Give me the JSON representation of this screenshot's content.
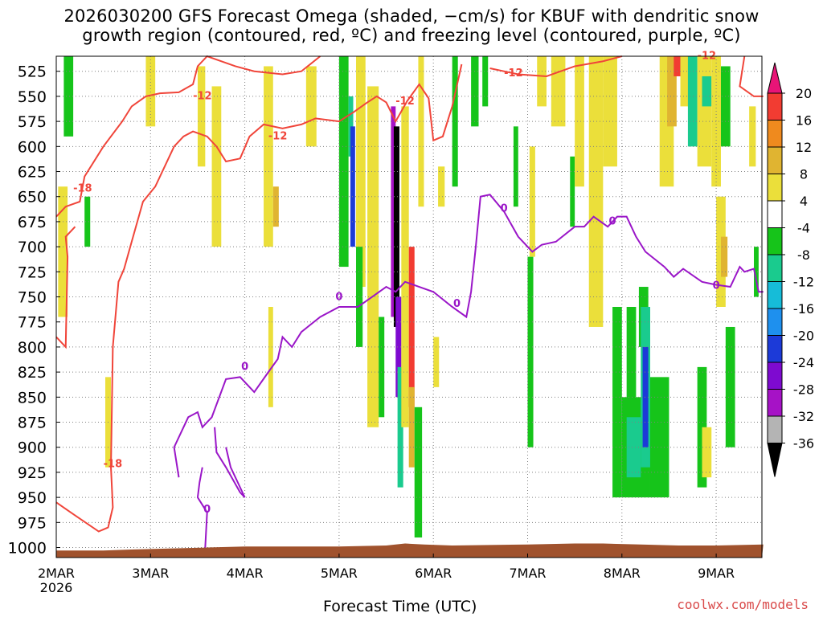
{
  "title_line1": "2026030200 GFS Forecast Omega (shaded, −cm/s) for KBUF with dendritic snow",
  "title_line2": "growth region (contoured, red, ºC) and freezing level (contoured, purple, ºC)",
  "xlabel": "Forecast Time (UTC)",
  "credit": "coolwx.com/models",
  "colors": {
    "temp_contour": "#f0453a",
    "freezing_contour": "#9a16c8",
    "terrain": "#a0522d",
    "grid": "#808080"
  },
  "chart_data": {
    "type": "heatmap",
    "title": "2026030200 GFS Forecast Omega (shaded, −cm/s) for KBUF with dendritic snow growth region (contoured, red, ºC) and freezing level (contoured, purple, ºC)",
    "xlabel": "Forecast Time (UTC)",
    "ylabel": "",
    "x_ticks": [
      "2MAR",
      "3MAR",
      "4MAR",
      "5MAR",
      "6MAR",
      "7MAR",
      "8MAR",
      "9MAR"
    ],
    "x_year": "2026",
    "xlim_days": [
      0,
      7.5
    ],
    "y_ticks": [
      525,
      550,
      575,
      600,
      625,
      650,
      675,
      700,
      725,
      750,
      775,
      800,
      825,
      850,
      875,
      900,
      925,
      950,
      975,
      1000
    ],
    "ylim_hPa": [
      510,
      1010
    ],
    "colorbar": {
      "labels": [
        "20",
        "16",
        "12",
        "8",
        "4",
        "-4",
        "-8",
        "-12",
        "-16",
        "-20",
        "-24",
        "-28",
        "-32",
        "-36"
      ],
      "colors": [
        "#e81477",
        "#f23c32",
        "#ef8a1e",
        "#e0b431",
        "#ebdf3a",
        "#ffffff",
        "#16c41a",
        "#1acb8e",
        "#16bcd8",
        "#1e90ee",
        "#1c3ad8",
        "#7e0ad0",
        "#a612c6",
        "#b4b4b4",
        "#000000"
      ]
    },
    "contour_labels": {
      "temp": [
        "-18",
        "-12",
        "-12",
        "-18",
        "-12",
        "-12",
        "-12"
      ],
      "freezing": [
        "0",
        "0",
        "0",
        "0",
        "0",
        "0",
        "0"
      ]
    },
    "shaded_regions": [
      {
        "t0": 0.02,
        "t1": 0.12,
        "p0": 640,
        "p1": 770,
        "val": 6
      },
      {
        "t0": 0.08,
        "t1": 0.18,
        "p0": 510,
        "p1": 590,
        "val": -6
      },
      {
        "t0": 0.3,
        "t1": 0.36,
        "p0": 650,
        "p1": 700,
        "val": -6
      },
      {
        "t0": 0.52,
        "t1": 0.58,
        "p0": 830,
        "p1": 920,
        "val": 6
      },
      {
        "t0": 0.95,
        "t1": 1.05,
        "p0": 510,
        "p1": 580,
        "val": 6
      },
      {
        "t0": 1.5,
        "t1": 1.58,
        "p0": 520,
        "p1": 620,
        "val": 6
      },
      {
        "t0": 1.65,
        "t1": 1.75,
        "p0": 540,
        "p1": 700,
        "val": 6
      },
      {
        "t0": 2.2,
        "t1": 2.3,
        "p0": 520,
        "p1": 700,
        "val": 6
      },
      {
        "t0": 2.25,
        "t1": 2.3,
        "p0": 760,
        "p1": 860,
        "val": 6
      },
      {
        "t0": 2.3,
        "t1": 2.36,
        "p0": 640,
        "p1": 680,
        "val": 10
      },
      {
        "t0": 2.65,
        "t1": 2.76,
        "p0": 520,
        "p1": 600,
        "val": 6
      },
      {
        "t0": 3.0,
        "t1": 3.1,
        "p0": 510,
        "p1": 720,
        "val": -6
      },
      {
        "t0": 3.1,
        "t1": 3.15,
        "p0": 550,
        "p1": 610,
        "val": -10
      },
      {
        "t0": 3.12,
        "t1": 3.17,
        "p0": 580,
        "p1": 700,
        "val": -22
      },
      {
        "t0": 3.18,
        "t1": 3.28,
        "p0": 510,
        "p1": 740,
        "val": 6
      },
      {
        "t0": 3.18,
        "t1": 3.25,
        "p0": 700,
        "p1": 800,
        "val": -6
      },
      {
        "t0": 3.3,
        "t1": 3.42,
        "p0": 540,
        "p1": 880,
        "val": 6
      },
      {
        "t0": 3.42,
        "t1": 3.48,
        "p0": 770,
        "p1": 870,
        "val": -6
      },
      {
        "t0": 3.55,
        "t1": 3.6,
        "p0": 560,
        "p1": 770,
        "val": -30
      },
      {
        "t0": 3.58,
        "t1": 3.64,
        "p0": 580,
        "p1": 780,
        "val": -38
      },
      {
        "t0": 3.6,
        "t1": 3.66,
        "p0": 750,
        "p1": 850,
        "val": -26
      },
      {
        "t0": 3.62,
        "t1": 3.68,
        "p0": 820,
        "p1": 940,
        "val": -10
      },
      {
        "t0": 3.66,
        "t1": 3.74,
        "p0": 560,
        "p1": 880,
        "val": 6
      },
      {
        "t0": 3.74,
        "t1": 3.8,
        "p0": 700,
        "p1": 860,
        "val": 18
      },
      {
        "t0": 3.74,
        "t1": 3.8,
        "p0": 840,
        "p1": 920,
        "val": 10
      },
      {
        "t0": 3.8,
        "t1": 3.88,
        "p0": 860,
        "p1": 990,
        "val": -6
      },
      {
        "t0": 3.84,
        "t1": 3.9,
        "p0": 510,
        "p1": 660,
        "val": 6
      },
      {
        "t0": 4.0,
        "t1": 4.06,
        "p0": 790,
        "p1": 840,
        "val": 6
      },
      {
        "t0": 4.05,
        "t1": 4.12,
        "p0": 620,
        "p1": 660,
        "val": 6
      },
      {
        "t0": 4.2,
        "t1": 4.26,
        "p0": 510,
        "p1": 640,
        "val": -6
      },
      {
        "t0": 4.4,
        "t1": 4.48,
        "p0": 510,
        "p1": 580,
        "val": -6
      },
      {
        "t0": 4.52,
        "t1": 4.58,
        "p0": 510,
        "p1": 560,
        "val": -6
      },
      {
        "t0": 4.85,
        "t1": 4.9,
        "p0": 580,
        "p1": 660,
        "val": -6
      },
      {
        "t0": 5.0,
        "t1": 5.06,
        "p0": 710,
        "p1": 900,
        "val": -6
      },
      {
        "t0": 5.02,
        "t1": 5.08,
        "p0": 600,
        "p1": 710,
        "val": 6
      },
      {
        "t0": 5.1,
        "t1": 5.2,
        "p0": 510,
        "p1": 560,
        "val": 6
      },
      {
        "t0": 5.25,
        "t1": 5.4,
        "p0": 510,
        "p1": 580,
        "val": 6
      },
      {
        "t0": 5.45,
        "t1": 5.5,
        "p0": 610,
        "p1": 680,
        "val": -6
      },
      {
        "t0": 5.5,
        "t1": 5.6,
        "p0": 510,
        "p1": 640,
        "val": 6
      },
      {
        "t0": 5.65,
        "t1": 5.8,
        "p0": 510,
        "p1": 780,
        "val": 6
      },
      {
        "t0": 5.8,
        "t1": 5.95,
        "p0": 510,
        "p1": 620,
        "val": 6
      },
      {
        "t0": 5.9,
        "t1": 6.0,
        "p0": 760,
        "p1": 950,
        "val": -6
      },
      {
        "t0": 6.0,
        "t1": 6.3,
        "p0": 850,
        "p1": 950,
        "val": -6
      },
      {
        "t0": 6.05,
        "t1": 6.15,
        "p0": 760,
        "p1": 860,
        "val": -6
      },
      {
        "t0": 6.18,
        "t1": 6.28,
        "p0": 740,
        "p1": 800,
        "val": -6
      },
      {
        "t0": 6.05,
        "t1": 6.2,
        "p0": 870,
        "p1": 930,
        "val": -10
      },
      {
        "t0": 6.2,
        "t1": 6.3,
        "p0": 760,
        "p1": 920,
        "val": -10
      },
      {
        "t0": 6.22,
        "t1": 6.28,
        "p0": 800,
        "p1": 900,
        "val": -22
      },
      {
        "t0": 6.3,
        "t1": 6.5,
        "p0": 830,
        "p1": 950,
        "val": -6
      },
      {
        "t0": 6.4,
        "t1": 6.55,
        "p0": 510,
        "p1": 640,
        "val": 6
      },
      {
        "t0": 6.48,
        "t1": 6.58,
        "p0": 510,
        "p1": 580,
        "val": 10
      },
      {
        "t0": 6.55,
        "t1": 6.62,
        "p0": 510,
        "p1": 530,
        "val": 18
      },
      {
        "t0": 6.62,
        "t1": 6.72,
        "p0": 510,
        "p1": 560,
        "val": 6
      },
      {
        "t0": 6.7,
        "t1": 6.8,
        "p0": 510,
        "p1": 600,
        "val": -10
      },
      {
        "t0": 6.8,
        "t1": 6.95,
        "p0": 510,
        "p1": 620,
        "val": 6
      },
      {
        "t0": 6.85,
        "t1": 6.95,
        "p0": 530,
        "p1": 560,
        "val": -10
      },
      {
        "t0": 6.95,
        "t1": 7.05,
        "p0": 510,
        "p1": 640,
        "val": 6
      },
      {
        "t0": 7.05,
        "t1": 7.15,
        "p0": 520,
        "p1": 600,
        "val": -6
      },
      {
        "t0": 7.0,
        "t1": 7.1,
        "p0": 650,
        "p1": 760,
        "val": 6
      },
      {
        "t0": 7.05,
        "t1": 7.12,
        "p0": 690,
        "p1": 730,
        "val": 10
      },
      {
        "t0": 7.1,
        "t1": 7.2,
        "p0": 780,
        "p1": 900,
        "val": -6
      },
      {
        "t0": 6.8,
        "t1": 6.9,
        "p0": 820,
        "p1": 940,
        "val": -6
      },
      {
        "t0": 6.85,
        "t1": 6.95,
        "p0": 880,
        "p1": 930,
        "val": 6
      },
      {
        "t0": 7.35,
        "t1": 7.42,
        "p0": 560,
        "p1": 620,
        "val": 6
      },
      {
        "t0": 7.4,
        "t1": 7.45,
        "p0": 700,
        "p1": 750,
        "val": -6
      }
    ],
    "terrain_hPa_by_day": [
      [
        0,
        1003
      ],
      [
        0.5,
        1003
      ],
      [
        0.8,
        1002
      ],
      [
        1.2,
        1001
      ],
      [
        1.6,
        1000
      ],
      [
        2.0,
        999
      ],
      [
        2.5,
        999
      ],
      [
        3.0,
        999
      ],
      [
        3.5,
        998
      ],
      [
        3.7,
        996
      ],
      [
        3.9,
        997
      ],
      [
        4.2,
        998
      ],
      [
        5.0,
        997
      ],
      [
        5.5,
        996
      ],
      [
        5.8,
        996
      ],
      [
        6.2,
        997
      ],
      [
        6.6,
        998
      ],
      [
        7.0,
        998
      ],
      [
        7.5,
        997
      ]
    ]
  }
}
